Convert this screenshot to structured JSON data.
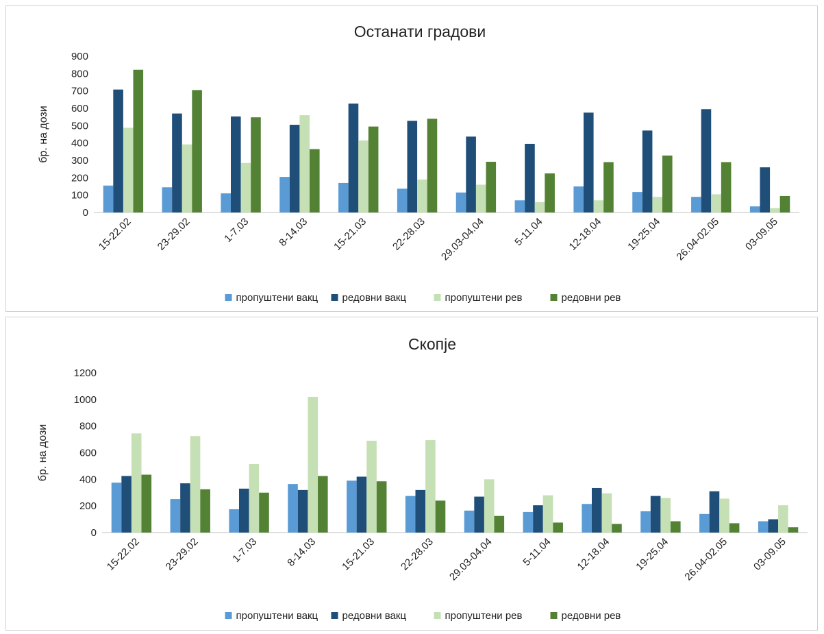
{
  "chart_data": [
    {
      "type": "bar",
      "title": "Останати градови",
      "ylabel": "бр. на дози",
      "xlabel": "",
      "ylim": [
        0,
        900
      ],
      "yticks": [
        0,
        100,
        200,
        300,
        400,
        500,
        600,
        700,
        800,
        900
      ],
      "legend_position": "bottom",
      "grid": false,
      "categories": [
        "15-22.02",
        "23-29.02",
        "1-7.03",
        "8-14.03",
        "15-21.03",
        "22-28.03",
        "29.03-04.04",
        "5-11.04",
        "12-18.04",
        "19-25.04",
        "26.04-02.05",
        "03-09.05"
      ],
      "series": [
        {
          "name": "пропуштени вакц",
          "color": "#5b9bd5",
          "values": [
            155,
            145,
            110,
            205,
            170,
            137,
            115,
            70,
            150,
            118,
            90,
            35
          ]
        },
        {
          "name": "редовни вакц",
          "color": "#1f4e79",
          "values": [
            708,
            570,
            553,
            505,
            627,
            528,
            437,
            395,
            575,
            472,
            595,
            260
          ]
        },
        {
          "name": "пропуштени рев",
          "color": "#c5e0b4",
          "values": [
            488,
            392,
            285,
            560,
            415,
            190,
            160,
            60,
            70,
            90,
            105,
            25
          ]
        },
        {
          "name": "редовни рев",
          "color": "#548235",
          "values": [
            822,
            705,
            548,
            365,
            495,
            540,
            292,
            225,
            290,
            328,
            290,
            95
          ]
        }
      ]
    },
    {
      "type": "bar",
      "title": "Скопје",
      "ylabel": "бр. на дози",
      "xlabel": "",
      "ylim": [
        0,
        1200
      ],
      "yticks": [
        0,
        200,
        400,
        600,
        800,
        1000,
        1200
      ],
      "legend_position": "bottom",
      "grid": false,
      "categories": [
        "15-22.02",
        "23-29.02",
        "1-7.03",
        "8-14.03",
        "15-21.03",
        "22-28.03",
        "29.03-04.04",
        "5-11.04",
        "12-18.04",
        "19-25.04",
        "26.04-02.05",
        "03-09.05"
      ],
      "series": [
        {
          "name": "пропуштени вакц",
          "color": "#5b9bd5",
          "values": [
            375,
            252,
            175,
            365,
            390,
            275,
            165,
            155,
            215,
            160,
            140,
            85
          ]
        },
        {
          "name": "редовни вакц",
          "color": "#1f4e79",
          "values": [
            425,
            370,
            330,
            320,
            420,
            320,
            270,
            205,
            335,
            275,
            310,
            100
          ]
        },
        {
          "name": "пропуштени рев",
          "color": "#c5e0b4",
          "values": [
            745,
            725,
            515,
            1020,
            690,
            695,
            400,
            280,
            295,
            260,
            255,
            205
          ]
        },
        {
          "name": "редовни рев",
          "color": "#548235",
          "values": [
            435,
            325,
            300,
            425,
            385,
            240,
            125,
            75,
            65,
            85,
            70,
            40
          ]
        }
      ]
    }
  ]
}
